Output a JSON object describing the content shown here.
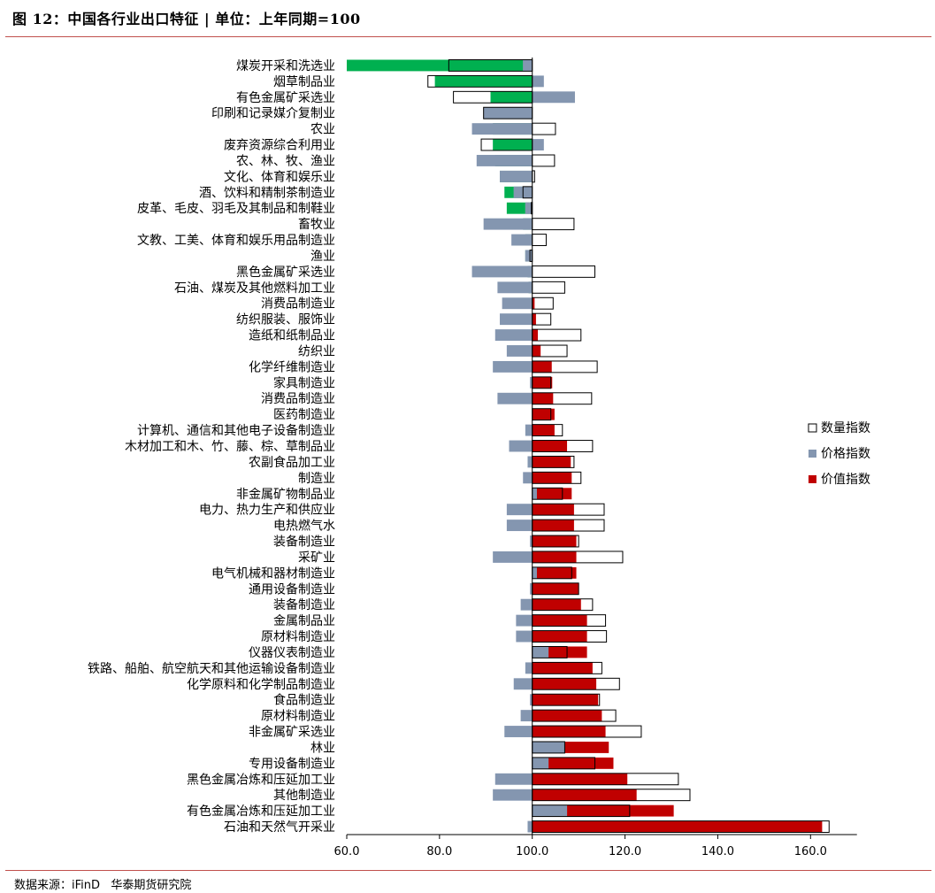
{
  "header": {
    "title": "图 12：中国各行业出口特征 | 单位：上年同期=100"
  },
  "footer": {
    "source": "数据来源：iFinD   华泰期货研究院"
  },
  "colors": {
    "quantity_fill": "#ffffff",
    "quantity_stroke": "#000000",
    "price": "#8496b0",
    "value_up": "#c00000",
    "value_down_light": "#00b050",
    "value_down_dark": "#006450",
    "overlap_dark": "#5b1f2e"
  },
  "chart_data": {
    "type": "bar",
    "orientation": "horizontal",
    "baseline": 100,
    "xlim": [
      60,
      170
    ],
    "xticks": [
      "60.0",
      "80.0",
      "100.0",
      "120.0",
      "140.0",
      "160.0"
    ],
    "xtick_values": [
      60,
      80,
      100,
      120,
      140,
      160
    ],
    "legend": {
      "position": "right",
      "entries": [
        "数量指数",
        "价格指数",
        "价值指数"
      ]
    },
    "categories": [
      "煤炭开采和洗选业",
      "烟草制品业",
      "有色金属矿采选业",
      "印刷和记录媒介复制业",
      "农业",
      "废弃资源综合利用业",
      "农、林、牧、渔业",
      "文化、体育和娱乐业",
      "酒、饮料和精制茶制造业",
      "皮革、毛皮、羽毛及其制品和制鞋业",
      "畜牧业",
      "文教、工美、体育和娱乐用品制造业",
      "渔业",
      "黑色金属矿采选业",
      "石油、煤炭及其他燃料加工业",
      "消费品制造业",
      "纺织服装、服饰业",
      "造纸和纸制品业",
      "纺织业",
      "化学纤维制造业",
      "家具制造业",
      "消费品制造业",
      "医药制造业",
      "计算机、通信和其他电子设备制造业",
      "木材加工和木、竹、藤、棕、草制品业",
      "农副食品加工业",
      "制造业",
      "非金属矿物制品业",
      "电力、热力生产和供应业",
      "电热燃气水",
      "装备制造业",
      "采矿业",
      "电气机械和器材制造业",
      "通用设备制造业",
      "装备制造业",
      "金属制品业",
      "原材料制造业",
      "仪器仪表制造业",
      "铁路、船舶、航空航天和其他运输设备制造业",
      "化学原料和化学制品制造业",
      "食品制造业",
      "原材料制造业",
      "非金属矿采选业",
      "林业",
      "专用设备制造业",
      "黑色金属冶炼和压延加工业",
      "其他制造业",
      "有色金属冶炼和压延加工业",
      "石油和天然气开采业"
    ],
    "series": [
      {
        "name": "数量指数",
        "values": [
          82.0,
          77.5,
          83.0,
          89.5,
          105.0,
          89.0,
          104.8,
          100.5,
          98.0,
          99.8,
          109.0,
          103.0,
          99.5,
          113.5,
          107.0,
          104.5,
          104.0,
          110.5,
          107.5,
          114.0,
          104.0,
          112.8,
          104.0,
          106.5,
          113.0,
          109.0,
          110.5,
          106.5,
          115.5,
          115.5,
          110.0,
          119.5,
          108.5,
          110.0,
          113.0,
          115.8,
          116.0,
          107.5,
          115.0,
          118.8,
          114.5,
          118.0,
          123.5,
          107.0,
          113.5,
          131.5,
          134.0,
          121.0,
          164.0
        ]
      },
      {
        "name": "价格指数",
        "values": [
          98.0,
          102.5,
          109.2,
          89.5,
          87.0,
          102.5,
          88.0,
          93.0,
          96.0,
          98.5,
          89.5,
          95.5,
          98.5,
          87.0,
          92.5,
          93.5,
          93.0,
          92.0,
          94.5,
          91.5,
          99.5,
          92.5,
          100.0,
          98.5,
          95.0,
          99.0,
          98.0,
          101.0,
          94.5,
          94.5,
          99.5,
          91.5,
          101.0,
          99.5,
          97.5,
          96.5,
          96.5,
          103.5,
          98.5,
          96.0,
          99.5,
          97.5,
          94.0,
          107.0,
          103.5,
          92.0,
          91.5,
          107.5,
          99.0
        ]
      },
      {
        "name": "价值指数",
        "values": [
          60.0,
          79.0,
          91.0,
          91.5,
          91.5,
          91.5,
          92.0,
          93.0,
          94.0,
          94.5,
          98.0,
          98.5,
          98.5,
          99.0,
          99.2,
          100.5,
          100.8,
          101.2,
          101.8,
          104.2,
          104.3,
          104.5,
          104.8,
          104.8,
          107.5,
          108.3,
          108.5,
          108.5,
          109.0,
          109.0,
          109.5,
          109.5,
          109.5,
          110.0,
          110.5,
          111.8,
          111.8,
          111.8,
          113.0,
          113.8,
          114.2,
          115.0,
          115.8,
          116.5,
          117.5,
          120.5,
          122.5,
          130.5,
          162.5
        ]
      }
    ]
  }
}
